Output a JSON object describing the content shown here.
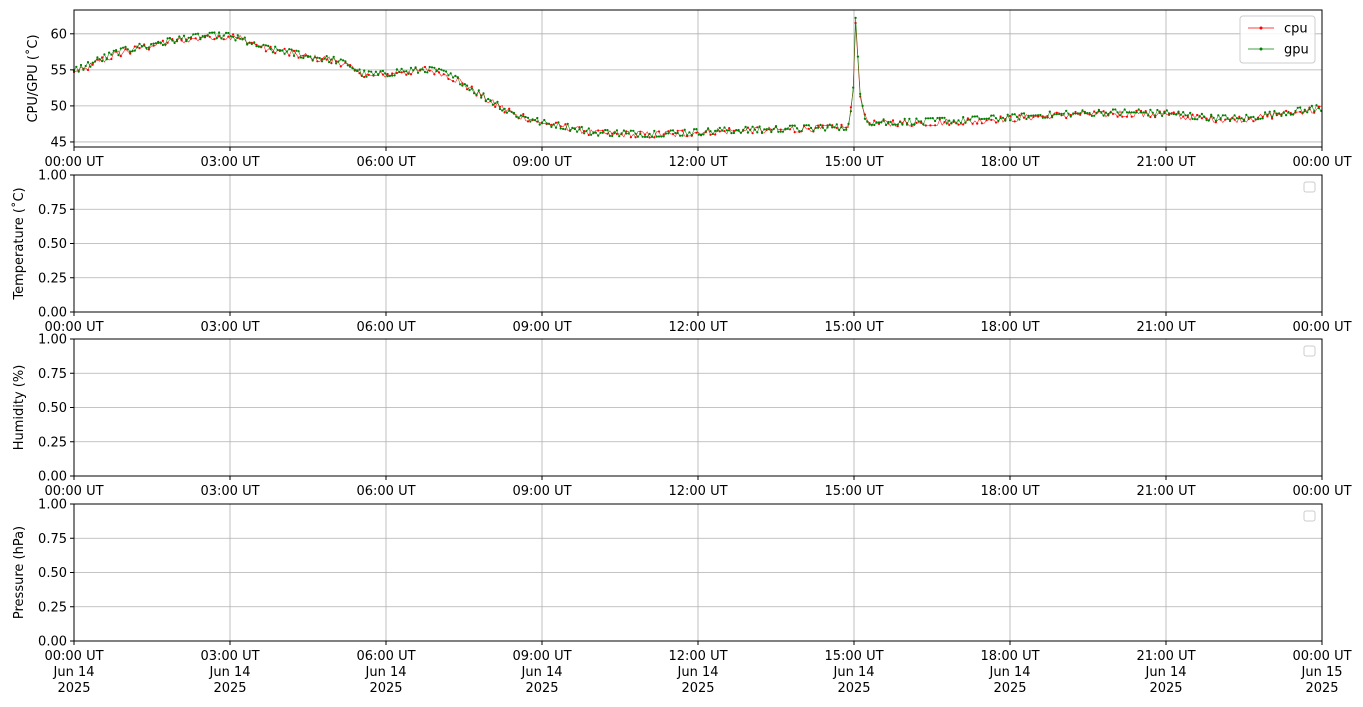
{
  "chart_data": [
    {
      "type": "line",
      "ylabel": "CPU/GPU (˚C)",
      "xlim": [
        "2025-06-14 00:00",
        "2025-06-15 00:00"
      ],
      "ylim": [
        44.3,
        63.3
      ],
      "yticks": [
        45,
        50,
        55,
        60
      ],
      "ytick_labels": [
        "45",
        "50",
        "55",
        "60"
      ],
      "xtick_labels": [
        "00:00 UT",
        "03:00 UT",
        "06:00 UT",
        "09:00 UT",
        "12:00 UT",
        "15:00 UT",
        "18:00 UT",
        "21:00 UT",
        "00:00 UT"
      ],
      "grid": true,
      "legend": "upper right",
      "x_hours": [
        0,
        0.25,
        0.5,
        0.75,
        1.0,
        1.25,
        1.5,
        1.75,
        2.0,
        2.25,
        2.5,
        2.75,
        3.0,
        3.25,
        3.5,
        3.75,
        4.0,
        4.25,
        4.5,
        4.75,
        5.0,
        5.25,
        5.5,
        5.75,
        6.0,
        6.25,
        6.5,
        6.75,
        7.0,
        7.25,
        7.5,
        7.75,
        8.0,
        8.25,
        8.5,
        8.75,
        9.0,
        9.25,
        9.5,
        9.75,
        10.0,
        10.5,
        11.0,
        11.5,
        12.0,
        12.5,
        13.0,
        13.5,
        14.0,
        14.5,
        14.9,
        15.0,
        15.03,
        15.06,
        15.1,
        15.2,
        15.3,
        15.5,
        15.75,
        16.0,
        16.5,
        17.0,
        17.5,
        18.0,
        18.5,
        19.0,
        19.5,
        20.0,
        20.5,
        21.0,
        21.5,
        22.0,
        22.5,
        23.0,
        23.5,
        23.9
      ],
      "series": [
        {
          "name": "cpu",
          "color": "#ff0000",
          "values": [
            54.7,
            55.3,
            56.2,
            57.0,
            57.5,
            58.0,
            58.3,
            58.7,
            59.0,
            59.3,
            59.5,
            59.7,
            59.6,
            59.3,
            58.5,
            57.8,
            57.6,
            57.2,
            56.8,
            56.5,
            56.3,
            55.5,
            54.5,
            54.2,
            54.4,
            54.6,
            54.8,
            55.0,
            54.7,
            54.0,
            53.0,
            51.8,
            50.7,
            49.6,
            48.8,
            48.2,
            47.6,
            47.3,
            47.0,
            46.6,
            46.2,
            46.1,
            46.0,
            46.1,
            46.3,
            46.5,
            46.6,
            46.7,
            46.8,
            46.9,
            47.0,
            53.0,
            61.5,
            59.0,
            52.0,
            48.5,
            47.6,
            47.5,
            47.6,
            47.6,
            47.7,
            47.8,
            48.0,
            48.2,
            48.5,
            48.7,
            48.8,
            48.9,
            48.9,
            48.8,
            48.4,
            48.1,
            48.1,
            48.6,
            49.1,
            49.5
          ]
        },
        {
          "name": "gpu",
          "color": "#008000",
          "values": [
            54.9,
            55.6,
            56.5,
            57.2,
            57.8,
            58.2,
            58.6,
            58.9,
            59.2,
            59.5,
            59.7,
            59.8,
            59.7,
            59.2,
            58.3,
            57.9,
            57.7,
            57.3,
            56.9,
            56.6,
            56.4,
            55.7,
            54.6,
            54.3,
            54.5,
            54.7,
            54.9,
            55.1,
            54.8,
            54.1,
            53.1,
            51.9,
            50.8,
            49.7,
            48.9,
            48.3,
            47.7,
            47.4,
            47.1,
            46.7,
            46.3,
            46.2,
            46.1,
            46.2,
            46.4,
            46.6,
            46.7,
            46.8,
            46.9,
            47.0,
            47.1,
            53.5,
            62.2,
            59.5,
            52.4,
            48.7,
            47.8,
            47.7,
            47.8,
            47.8,
            47.9,
            48.0,
            48.2,
            48.4,
            48.7,
            48.9,
            49.0,
            49.1,
            49.1,
            49.0,
            48.6,
            48.3,
            48.3,
            48.8,
            49.3,
            49.7
          ]
        }
      ]
    },
    {
      "type": "line",
      "ylabel": "Temperature (˚C)",
      "xlim": [
        "2025-06-14 00:00",
        "2025-06-15 00:00"
      ],
      "ylim": [
        0,
        1
      ],
      "yticks": [
        0,
        0.25,
        0.5,
        0.75,
        1
      ],
      "ytick_labels": [
        "0.00",
        "0.25",
        "0.50",
        "0.75",
        "1.00"
      ],
      "xtick_labels": [
        "00:00 UT",
        "03:00 UT",
        "06:00 UT",
        "09:00 UT",
        "12:00 UT",
        "15:00 UT",
        "18:00 UT",
        "21:00 UT",
        "00:00 UT"
      ],
      "grid": true,
      "legend": "upper right (empty)",
      "series": []
    },
    {
      "type": "line",
      "ylabel": "Humidity (%)",
      "xlim": [
        "2025-06-14 00:00",
        "2025-06-15 00:00"
      ],
      "ylim": [
        0,
        1
      ],
      "yticks": [
        0,
        0.25,
        0.5,
        0.75,
        1
      ],
      "ytick_labels": [
        "0.00",
        "0.25",
        "0.50",
        "0.75",
        "1.00"
      ],
      "xtick_labels": [
        "00:00 UT",
        "03:00 UT",
        "06:00 UT",
        "09:00 UT",
        "12:00 UT",
        "15:00 UT",
        "18:00 UT",
        "21:00 UT",
        "00:00 UT"
      ],
      "grid": true,
      "legend": "upper right (empty)",
      "series": []
    },
    {
      "type": "line",
      "ylabel": "Pressure (hPa)",
      "xlim": [
        "2025-06-14 00:00",
        "2025-06-15 00:00"
      ],
      "ylim": [
        0,
        1
      ],
      "yticks": [
        0,
        0.25,
        0.5,
        0.75,
        1
      ],
      "ytick_labels": [
        "0.00",
        "0.25",
        "0.50",
        "0.75",
        "1.00"
      ],
      "xtick_labels": [
        "00:00 UT",
        "03:00 UT",
        "06:00 UT",
        "09:00 UT",
        "12:00 UT",
        "15:00 UT",
        "18:00 UT",
        "21:00 UT",
        "00:00 UT"
      ],
      "xtick_sublabels": [
        [
          "Jun 14",
          "2025"
        ],
        [
          "Jun 14",
          "2025"
        ],
        [
          "Jun 14",
          "2025"
        ],
        [
          "Jun 14",
          "2025"
        ],
        [
          "Jun 14",
          "2025"
        ],
        [
          "Jun 14",
          "2025"
        ],
        [
          "Jun 14",
          "2025"
        ],
        [
          "Jun 14",
          "2025"
        ],
        [
          "Jun 15",
          "2025"
        ]
      ],
      "grid": true,
      "legend": "upper right (empty)",
      "series": []
    }
  ]
}
